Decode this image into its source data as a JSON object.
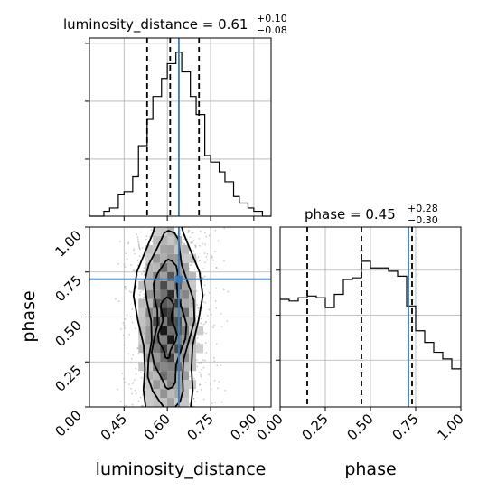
{
  "chart_data": {
    "type": "corner",
    "colors": {
      "truth": "#3b7bb8",
      "hist": "#000000",
      "grid": "#b0b0b0",
      "quantile": "#000000"
    },
    "panels": {
      "luminosity_distance_hist": {
        "type": "histogram",
        "title_param": "luminosity_distance",
        "title_value": "0.61",
        "title_plus": "+0.10",
        "title_minus": "−0.08",
        "xlim": [
          0.33,
          0.96
        ],
        "quantiles": [
          0.53,
          0.61,
          0.71
        ],
        "truth": 0.64,
        "grid": true,
        "bins_x": [
          0.33,
          0.35,
          0.38,
          0.4,
          0.43,
          0.45,
          0.48,
          0.5,
          0.53,
          0.55,
          0.58,
          0.6,
          0.63,
          0.65,
          0.68,
          0.7,
          0.73,
          0.75,
          0.78,
          0.8,
          0.83,
          0.85,
          0.88,
          0.9,
          0.93,
          0.96
        ],
        "counts": [
          0.0,
          0.0,
          0.03,
          0.05,
          0.13,
          0.15,
          0.24,
          0.43,
          0.59,
          0.73,
          0.84,
          0.93,
          1.0,
          0.88,
          0.73,
          0.62,
          0.37,
          0.33,
          0.27,
          0.21,
          0.12,
          0.08,
          0.05,
          0.03,
          0.0
        ]
      },
      "phase_hist": {
        "type": "histogram",
        "title_param": "phase",
        "title_value": "0.45",
        "title_plus": "+0.28",
        "title_minus": "−0.30",
        "xlim": [
          0,
          1
        ],
        "quantiles": [
          0.15,
          0.45,
          0.73
        ],
        "truth": 0.71,
        "grid": true,
        "bins_x": [
          0,
          0.05,
          0.1,
          0.15,
          0.2,
          0.25,
          0.3,
          0.35,
          0.4,
          0.45,
          0.5,
          0.55,
          0.6,
          0.65,
          0.7,
          0.75,
          0.8,
          0.85,
          0.9,
          0.95,
          1.0
        ],
        "counts": [
          0.65,
          0.64,
          0.66,
          0.67,
          0.66,
          0.6,
          0.68,
          0.77,
          0.78,
          0.88,
          0.84,
          0.84,
          0.82,
          0.79,
          0.61,
          0.46,
          0.39,
          0.33,
          0.29,
          0.23
        ]
      },
      "joint": {
        "type": "2d-density",
        "xlim": [
          0.33,
          0.96
        ],
        "ylim": [
          0,
          1
        ],
        "truth": {
          "x": 0.64,
          "y": 0.71
        },
        "grid": true
      }
    },
    "axes": {
      "bottom_left_x": {
        "label": "luminosity_distance",
        "ticks": [
          0.45,
          0.6,
          0.75,
          0.9
        ],
        "tick_labels": [
          "0.45",
          "0.60",
          "0.75",
          "0.90"
        ]
      },
      "bottom_right_x": {
        "label": "phase",
        "ticks": [
          0.0,
          0.25,
          0.5,
          0.75,
          1.0
        ],
        "tick_labels": [
          "0.00",
          "0.25",
          "0.50",
          "0.75",
          "1.00"
        ]
      },
      "joint_y": {
        "label": "phase",
        "ticks": [
          0.0,
          0.25,
          0.5,
          0.75,
          1.0
        ],
        "tick_labels": [
          "0.00",
          "0.25",
          "0.50",
          "0.75",
          "1.00"
        ]
      }
    }
  }
}
